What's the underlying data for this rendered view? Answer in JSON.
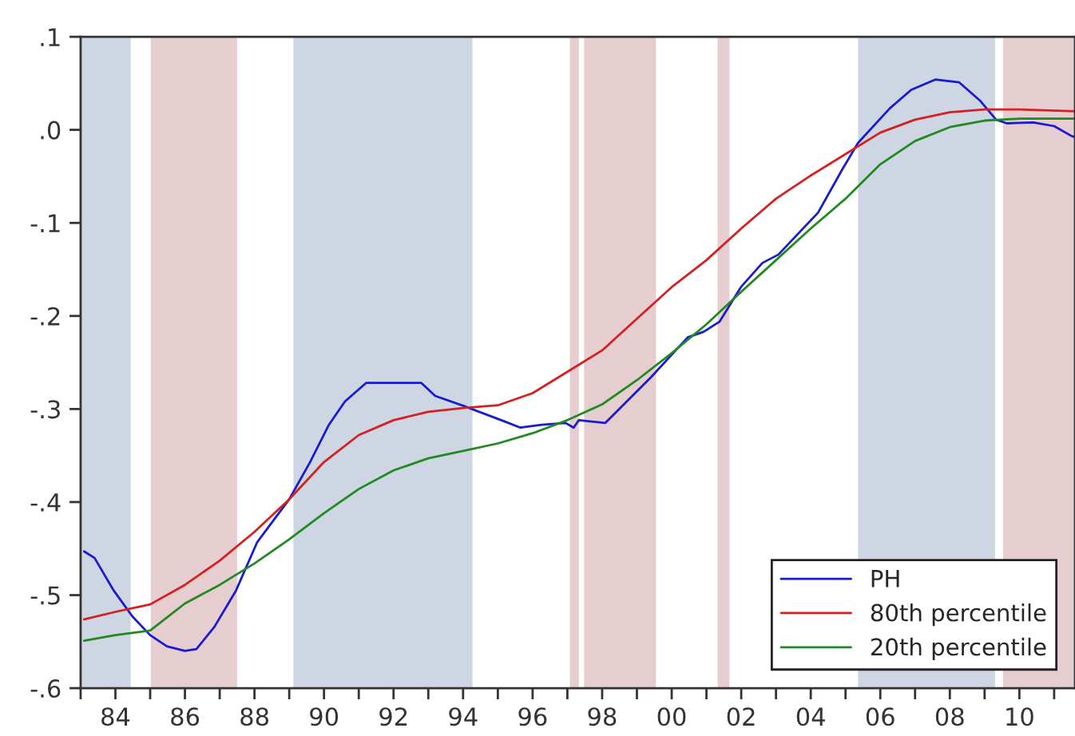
{
  "chart_data": {
    "type": "line",
    "xlim": [
      1983,
      2011.6
    ],
    "ylim": [
      -0.6,
      0.1
    ],
    "xticks": [
      {
        "value": 1983,
        "label": null
      },
      {
        "value": 1984,
        "label": "84"
      },
      {
        "value": 1985,
        "label": null
      },
      {
        "value": 1986,
        "label": "86"
      },
      {
        "value": 1987,
        "label": null
      },
      {
        "value": 1988,
        "label": "88"
      },
      {
        "value": 1989,
        "label": null
      },
      {
        "value": 1990,
        "label": "90"
      },
      {
        "value": 1991,
        "label": null
      },
      {
        "value": 1992,
        "label": "92"
      },
      {
        "value": 1993,
        "label": null
      },
      {
        "value": 1994,
        "label": "94"
      },
      {
        "value": 1995,
        "label": null
      },
      {
        "value": 1996,
        "label": "96"
      },
      {
        "value": 1997,
        "label": null
      },
      {
        "value": 1998,
        "label": "98"
      },
      {
        "value": 1999,
        "label": null
      },
      {
        "value": 2000,
        "label": "00"
      },
      {
        "value": 2001,
        "label": null
      },
      {
        "value": 2002,
        "label": "02"
      },
      {
        "value": 2003,
        "label": null
      },
      {
        "value": 2004,
        "label": "04"
      },
      {
        "value": 2005,
        "label": null
      },
      {
        "value": 2006,
        "label": "06"
      },
      {
        "value": 2007,
        "label": null
      },
      {
        "value": 2008,
        "label": "08"
      },
      {
        "value": 2009,
        "label": null
      },
      {
        "value": 2010,
        "label": "10"
      },
      {
        "value": 2011,
        "label": null
      }
    ],
    "yticks": [
      {
        "value": 0.1,
        "label": ".1"
      },
      {
        "value": 0.0,
        "label": ".0"
      },
      {
        "value": -0.1,
        "label": "-.1"
      },
      {
        "value": -0.2,
        "label": "-.2"
      },
      {
        "value": -0.3,
        "label": "-.3"
      },
      {
        "value": -0.4,
        "label": "-.4"
      },
      {
        "value": -0.5,
        "label": "-.5"
      },
      {
        "value": -0.6,
        "label": "-.6"
      }
    ],
    "grid": false,
    "legend": "bottom right",
    "bands": [
      {
        "axis": "x",
        "from": 1983,
        "to": 1984.44,
        "color": "#cdd6e2"
      },
      {
        "axis": "x",
        "from": 1985.02,
        "to": 1987.5,
        "color": "#e5cdd0"
      },
      {
        "axis": "x",
        "from": 1989.12,
        "to": 1994.27,
        "color": "#cdd6e2"
      },
      {
        "axis": "x",
        "from": 1997.07,
        "to": 1997.33,
        "color": "#e5cdd0"
      },
      {
        "axis": "x",
        "from": 1997.48,
        "to": 1999.55,
        "color": "#e5cdd0"
      },
      {
        "axis": "x",
        "from": 2001.32,
        "to": 2001.66,
        "color": "#e5cdd0"
      },
      {
        "axis": "x",
        "from": 2005.36,
        "to": 2009.3,
        "color": "#cdd6e2"
      },
      {
        "axis": "x",
        "from": 2009.53,
        "to": 2011.6,
        "color": "#e5cdd0"
      }
    ],
    "series": [
      {
        "name": "PH",
        "color": "#1a1ad0",
        "x": [
          1983.1,
          1983.4,
          1983.95,
          1984.49,
          1985.0,
          1985.48,
          1986.0,
          1986.33,
          1986.85,
          1987.47,
          1988.08,
          1989.0,
          1989.6,
          1990.14,
          1990.6,
          1991.21,
          1992.8,
          1993.2,
          1994.04,
          1995.1,
          1995.65,
          1996.26,
          1996.95,
          1997.18,
          1997.33,
          1998.09,
          1999.4,
          2000.46,
          2000.92,
          2001.38,
          2001.99,
          2002.61,
          2003.07,
          2004.21,
          2004.9,
          2005.36,
          2006.27,
          2006.89,
          2007.58,
          2008.27,
          2008.88,
          2009.33,
          2009.64,
          2010.4,
          2011.0,
          2011.47,
          2011.6
        ],
        "values": [
          -0.453,
          -0.46,
          -0.495,
          -0.523,
          -0.543,
          -0.555,
          -0.56,
          -0.558,
          -0.534,
          -0.495,
          -0.443,
          -0.397,
          -0.357,
          -0.317,
          -0.292,
          -0.272,
          -0.272,
          -0.286,
          -0.297,
          -0.312,
          -0.32,
          -0.317,
          -0.315,
          -0.32,
          -0.312,
          -0.315,
          -0.266,
          -0.223,
          -0.217,
          -0.206,
          -0.169,
          -0.143,
          -0.134,
          -0.089,
          -0.043,
          -0.014,
          0.023,
          0.043,
          0.054,
          0.051,
          0.031,
          0.011,
          0.007,
          0.008,
          0.004,
          -0.006,
          -0.008
        ]
      },
      {
        "name": "80th percentile",
        "color": "#d42020",
        "x": [
          1983.1,
          1984,
          1985,
          1986,
          1987,
          1988,
          1989,
          1990,
          1991,
          1992,
          1993,
          1994,
          1995,
          1996,
          1997,
          1998,
          1999,
          2000,
          2001,
          2002,
          2003,
          2004,
          2005,
          2006,
          2007,
          2008,
          2009,
          2010,
          2011.6
        ],
        "values": [
          -0.526,
          -0.518,
          -0.51,
          -0.489,
          -0.463,
          -0.432,
          -0.397,
          -0.357,
          -0.328,
          -0.312,
          -0.303,
          -0.299,
          -0.296,
          -0.283,
          -0.26,
          -0.237,
          -0.203,
          -0.169,
          -0.14,
          -0.106,
          -0.074,
          -0.049,
          -0.026,
          -0.003,
          0.011,
          0.019,
          0.022,
          0.022,
          0.02
        ]
      },
      {
        "name": "20th percentile",
        "color": "#208a20",
        "x": [
          1983.1,
          1984,
          1985,
          1986,
          1987,
          1988,
          1989,
          1990,
          1991,
          1992,
          1993,
          1994,
          1995,
          1996,
          1997,
          1998,
          1999,
          2000,
          2001,
          2002,
          2003,
          2004,
          2005,
          2006,
          2007,
          2008,
          2009,
          2010,
          2011.6
        ],
        "values": [
          -0.549,
          -0.543,
          -0.538,
          -0.509,
          -0.489,
          -0.466,
          -0.44,
          -0.412,
          -0.386,
          -0.366,
          -0.353,
          -0.345,
          -0.337,
          -0.326,
          -0.312,
          -0.295,
          -0.269,
          -0.24,
          -0.209,
          -0.174,
          -0.14,
          -0.106,
          -0.074,
          -0.037,
          -0.012,
          0.003,
          0.01,
          0.012,
          0.012
        ]
      }
    ]
  }
}
